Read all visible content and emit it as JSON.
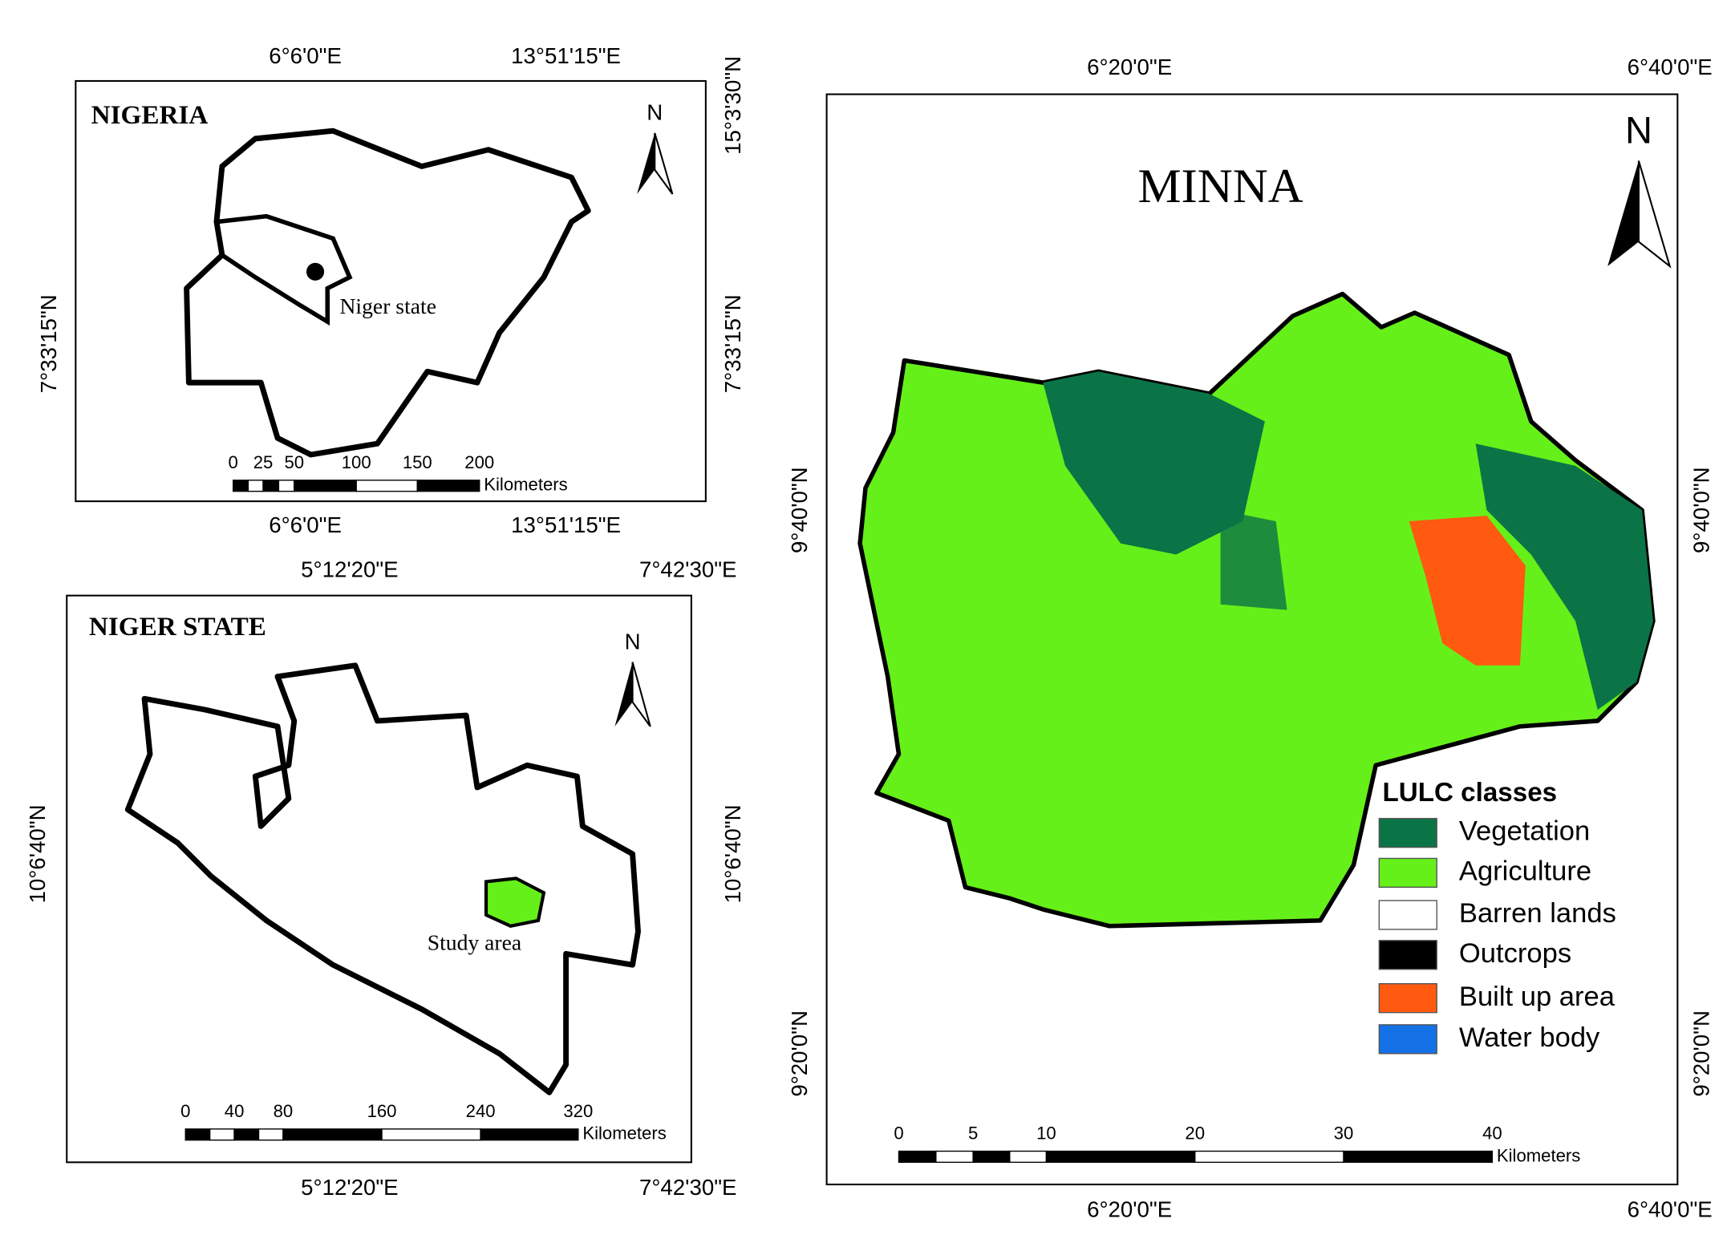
{
  "panels": [
    {
      "title": "NIGERIA",
      "north": "N",
      "label": "Niger state",
      "top_ticks": [
        "6°6'0\"E",
        "13°51'15\"E"
      ],
      "bottom_ticks": [
        "6°6'0\"E",
        "13°51'15\"E"
      ],
      "left_ticks": [
        "7°33'15\"N"
      ],
      "right_ticks": [
        "15°3'30\"N",
        "7°33'15\"N"
      ],
      "scale_labels": [
        "0",
        "25",
        "50",
        "100",
        "150",
        "200"
      ],
      "scale_unit": "Kilometers"
    },
    {
      "title": "NIGER STATE",
      "north": "N",
      "label": "Study area",
      "top_ticks": [
        "5°12'20\"E",
        "7°42'30\"E"
      ],
      "bottom_ticks": [
        "5°12'20\"E",
        "7°42'30\"E"
      ],
      "left_ticks": [
        "10°6'40\"N"
      ],
      "right_ticks": [
        "10°6'40\"N"
      ],
      "scale_labels": [
        "0",
        "40",
        "80",
        "160",
        "240",
        "320"
      ],
      "scale_unit": "Kilometers"
    },
    {
      "title": "MINNA",
      "north": "N",
      "top_ticks": [
        "6°20'0\"E",
        "6°40'0\"E"
      ],
      "bottom_ticks": [
        "6°20'0\"E",
        "6°40'0\"E"
      ],
      "left_ticks": [
        "9°40'0\"N",
        "9°20'0\"N"
      ],
      "right_ticks": [
        "9°40'0\"N",
        "9°20'0\"N"
      ],
      "scale_labels": [
        "0",
        "5",
        "10",
        "20",
        "30",
        "40"
      ],
      "scale_unit": "Kilometers",
      "legend": {
        "title": "LULC classes",
        "items": [
          {
            "name": "Vegetation",
            "color": "#0b7446"
          },
          {
            "name": "Agriculture",
            "color": "#66f019"
          },
          {
            "name": "Barren lands",
            "color": "#ffffff"
          },
          {
            "name": "Outcrops",
            "color": "#000000"
          },
          {
            "name": "Built up area",
            "color": "#ff5a10"
          },
          {
            "name": "Water body",
            "color": "#1472e6"
          }
        ]
      }
    }
  ]
}
